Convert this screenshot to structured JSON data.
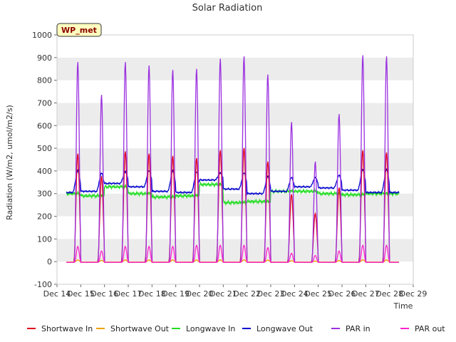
{
  "chart_data": {
    "type": "line",
    "title": "Solar Radiation",
    "xlabel": "Time",
    "ylabel": "Radiation (W/m2, umol/m2/s)",
    "badge": "WP_met",
    "xlim": [
      14,
      29
    ],
    "ylim": [
      -100,
      1000
    ],
    "x_ticks": [
      "Dec 14",
      "Dec 15",
      "Dec 16",
      "Dec 17",
      "Dec 18",
      "Dec 19",
      "Dec 20",
      "Dec 21",
      "Dec 22",
      "Dec 23",
      "Dec 24",
      "Dec 25",
      "Dec 26",
      "Dec 27",
      "Dec 28",
      "Dec 29"
    ],
    "y_ticks": [
      -100,
      0,
      100,
      200,
      300,
      400,
      500,
      600,
      700,
      800,
      900,
      1000
    ],
    "grid": "horizontal bands",
    "legend_position": "bottom",
    "daily_peaks": {
      "days": [
        "Dec 14",
        "Dec 15",
        "Dec 16",
        "Dec 17",
        "Dec 18",
        "Dec 19",
        "Dec 20",
        "Dec 21",
        "Dec 22",
        "Dec 23",
        "Dec 24",
        "Dec 25",
        "Dec 26",
        "Dec 27"
      ],
      "par_in": [
        885,
        740,
        885,
        870,
        850,
        855,
        900,
        910,
        830,
        620,
        445,
        655,
        915,
        910
      ],
      "par_out": [
        70,
        50,
        70,
        70,
        70,
        75,
        75,
        75,
        65,
        40,
        30,
        50,
        75,
        75
      ],
      "shortwave_in": [
        480,
        380,
        490,
        480,
        470,
        460,
        495,
        505,
        445,
        300,
        215,
        330,
        495,
        485
      ],
      "longwave_out_day": [
        400,
        390,
        395,
        400,
        400,
        395,
        390,
        390,
        375,
        370,
        370,
        380,
        405,
        405
      ],
      "longwave_out_night": [
        305,
        310,
        345,
        330,
        310,
        305,
        360,
        320,
        300,
        310,
        330,
        325,
        315,
        305
      ],
      "longwave_in": [
        300,
        290,
        330,
        300,
        285,
        290,
        340,
        260,
        265,
        310,
        310,
        300,
        295,
        300
      ]
    },
    "series": [
      {
        "name": "Shortwave In",
        "color": "#e0001b"
      },
      {
        "name": "Shortwave Out",
        "color": "#f0a000"
      },
      {
        "name": "Longwave In",
        "color": "#22dd22"
      },
      {
        "name": "Longwave Out",
        "color": "#0000cc"
      },
      {
        "name": "PAR in",
        "color": "#9b30e0"
      },
      {
        "name": "PAR out",
        "color": "#ff22cc"
      }
    ]
  }
}
